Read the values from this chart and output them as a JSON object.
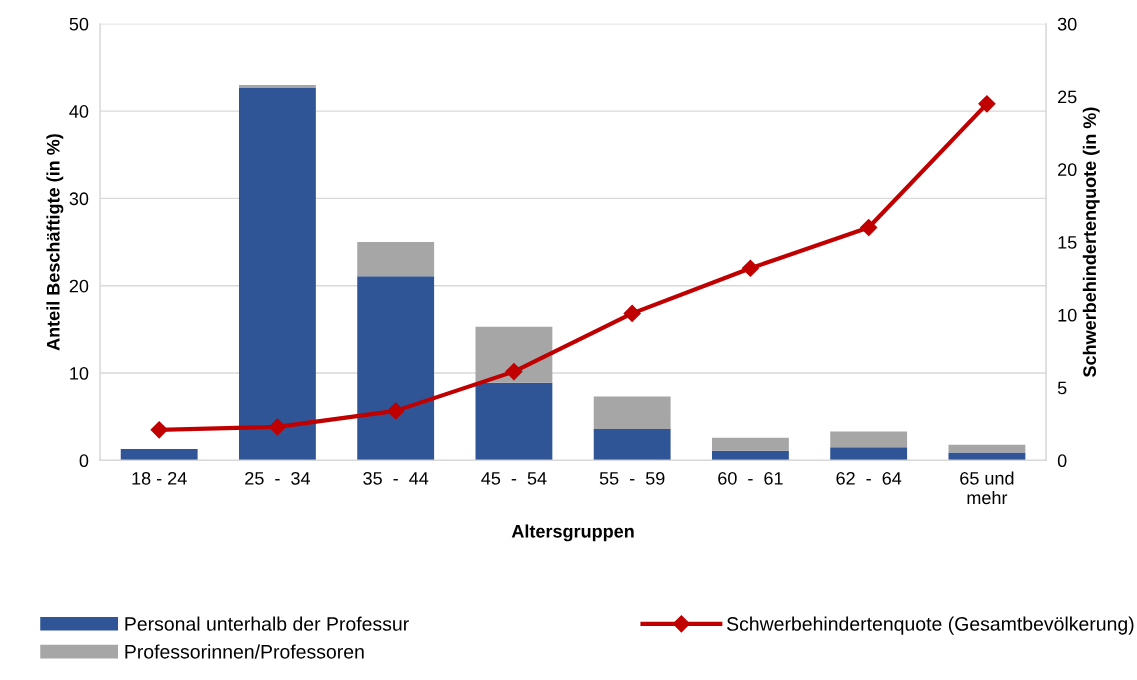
{
  "chart_data": {
    "type": "bar",
    "stacked": true,
    "xlabel": "Altersgruppen",
    "ylabel": "Anteil Beschäftigte (in %)",
    "y2label": "Schwerbehindertenquote (in %)",
    "categories": [
      "18 - 24",
      "25  -  34",
      "35  -  44",
      "45  -  54",
      "55  -  59",
      "60  -  61",
      "62  -  64",
      "65 und\nmehr"
    ],
    "series": [
      {
        "name": "Personal unterhalb der Professur",
        "color": "#2f5597",
        "values": [
          1.3,
          42.7,
          21.1,
          8.9,
          3.6,
          1.1,
          1.5,
          0.9
        ]
      },
      {
        "name": "Professorinnen/Professoren",
        "color": "#a6a6a6",
        "values": [
          0,
          0.3,
          3.9,
          6.4,
          3.7,
          1.5,
          1.8,
          0.9
        ]
      },
      {
        "name": "Schwerbehindertenquote (Gesamtbevölkerung)",
        "type": "line",
        "axis": "y2",
        "color": "#c00000",
        "marker": "diamond",
        "values": [
          2.1,
          2.3,
          3.4,
          6.1,
          10.1,
          13.2,
          16.0,
          24.5
        ]
      }
    ],
    "ylim": [
      0,
      50
    ],
    "yticks": [
      0,
      10,
      20,
      30,
      40,
      50
    ],
    "y2lim": [
      0,
      30
    ],
    "y2ticks": [
      0,
      5,
      10,
      15,
      20,
      25,
      30
    ],
    "grid": "y",
    "legend": "bottom"
  }
}
